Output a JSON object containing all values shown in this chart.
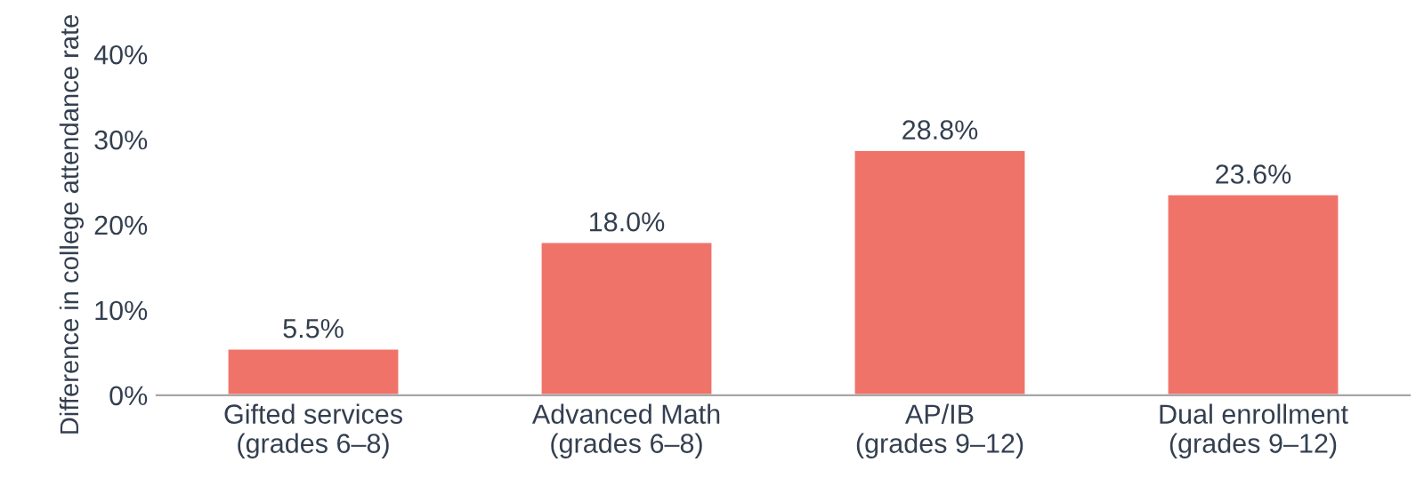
{
  "chart_data": {
    "type": "bar",
    "categories": [
      "Gifted services\n(grades 6–8)",
      "Advanced Math\n(grades 6–8)",
      "AP/IB\n(grades 9–12)",
      "Dual enrollment\n(grades 9–12)"
    ],
    "values": [
      5.5,
      18.0,
      28.8,
      23.6
    ],
    "value_labels": [
      "5.5%",
      "18.0%",
      "28.8%",
      "23.6%"
    ],
    "color": "#f0736a",
    "ylabel": "Difference in college attendance rate",
    "ylim": [
      0,
      40
    ],
    "yticks": [
      {
        "value": 0,
        "label": "0%"
      },
      {
        "value": 10,
        "label": "10%"
      },
      {
        "value": 20,
        "label": "20%"
      },
      {
        "value": 30,
        "label": "30%"
      },
      {
        "value": 40,
        "label": "40%"
      }
    ],
    "grid": false,
    "legend": false
  }
}
